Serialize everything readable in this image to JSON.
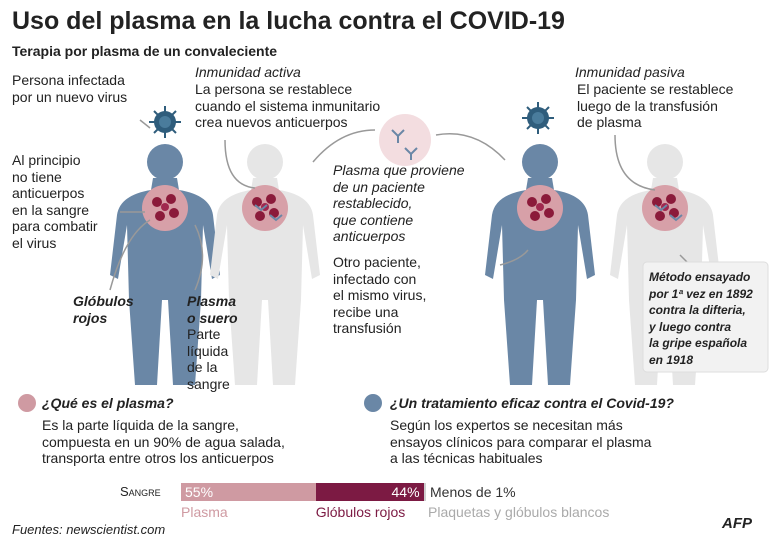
{
  "header": {
    "title": "Uso del plasma en la lucha contra el COVID-19",
    "subtitle": "Terapia por plasma de un convaleciente"
  },
  "infected": {
    "lines": [
      "Persona infectada",
      "por un nuevo virus"
    ]
  },
  "initially": {
    "lines": [
      "Al principio",
      "no tiene",
      "anticuerpos",
      "en la sangre",
      "para combatir",
      "el virus"
    ]
  },
  "red_cells_label": {
    "lines": [
      "Glóbulos",
      "rojos"
    ]
  },
  "plasma_label": {
    "lines": [
      "Plasma",
      "o suero"
    ]
  },
  "plasma_desc": {
    "lines": [
      "Parte",
      "líquida",
      "de la",
      "sangre"
    ]
  },
  "active": {
    "heading": "Inmunidad activa",
    "lines": [
      "La persona se restablece",
      "cuando el sistema inmunitario",
      "crea nuevos anticuerpos"
    ]
  },
  "plasma_from": {
    "lines": [
      "Plasma que proviene",
      "de un paciente",
      "restablecido,",
      "que contiene",
      "anticuerpos"
    ]
  },
  "other_patient": {
    "lines": [
      "Otro paciente,",
      "infectado con",
      "el mismo virus,",
      "recibe una",
      "transfusión"
    ]
  },
  "passive": {
    "heading": "Inmunidad pasiva",
    "lines": [
      "El paciente se restablece",
      "luego de la transfusión",
      "de plasma"
    ]
  },
  "method_note": {
    "lines": [
      "Método ensayado",
      "por 1ª vez en 1892",
      "contra la difteria,",
      "y luego contra",
      "la gripe española",
      "en 1918"
    ]
  },
  "what_is": {
    "heading": "¿Qué es el plasma?",
    "lines": [
      "Es la parte líquida de la sangre,",
      "compuesta en un 90% de agua salada,",
      "transporta entre otros los anticuerpos"
    ]
  },
  "treatment": {
    "heading": "¿Un tratamiento eficaz contra el Covid-19?",
    "lines": [
      "Según los expertos se necesitan más",
      "ensayos clínicos para comparar el plasma",
      "a las técnicas habituales"
    ]
  },
  "composition": {
    "label": "Sangre",
    "segments": [
      {
        "name": "Plasma",
        "value": 55,
        "value_label": "55%",
        "color": "#cf9aa2"
      },
      {
        "name": "Glóbulos rojos",
        "value": 44,
        "value_label": "44%",
        "color": "#7c1a43"
      },
      {
        "name": "Plaquetas y glóbulos blancos",
        "value": 1,
        "value_label": "Menos de 1%",
        "color": "#cfcfcf"
      }
    ]
  },
  "footer": {
    "source": "Fuentes: newscientist.com",
    "logo": "AFP"
  }
}
